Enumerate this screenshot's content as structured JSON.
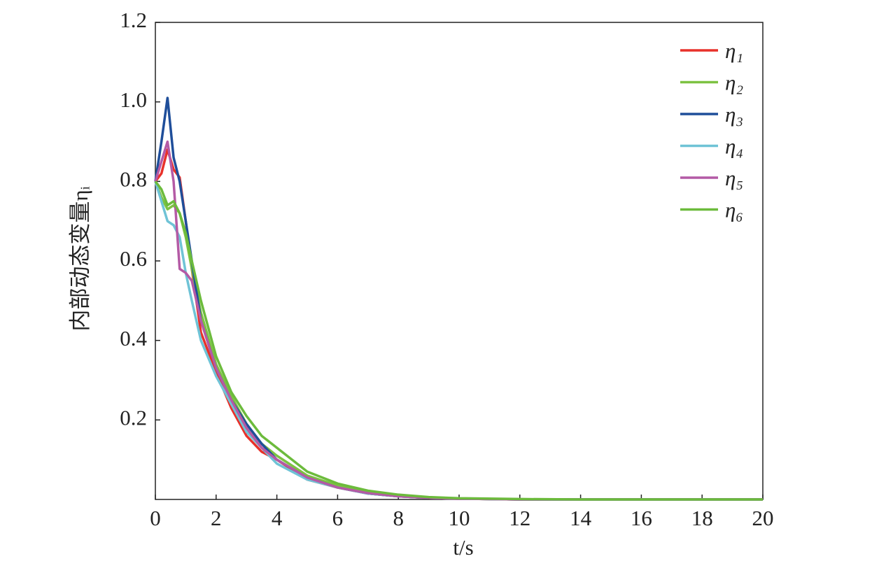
{
  "chart_data": {
    "type": "line",
    "x_label": "t/s",
    "y_label": "内部动态变量ηᵢ",
    "x": [
      0,
      0.2,
      0.4,
      0.6,
      0.8,
      1,
      1.2,
      1.5,
      2,
      2.5,
      3,
      3.5,
      4,
      5,
      6,
      7,
      8,
      9,
      10,
      12,
      14,
      16,
      18,
      20
    ],
    "series": [
      {
        "name": "η₁",
        "color": "#e8312a",
        "values": [
          0.8,
          0.82,
          0.88,
          0.83,
          0.81,
          0.7,
          0.58,
          0.42,
          0.32,
          0.23,
          0.16,
          0.12,
          0.1,
          0.05,
          0.03,
          0.015,
          0.008,
          0.004,
          0.002,
          0,
          0,
          0,
          0,
          0
        ]
      },
      {
        "name": "η₂",
        "color": "#7dc242",
        "values": [
          0.8,
          0.76,
          0.73,
          0.74,
          0.72,
          0.66,
          0.58,
          0.47,
          0.34,
          0.26,
          0.19,
          0.14,
          0.11,
          0.06,
          0.035,
          0.02,
          0.01,
          0.005,
          0.002,
          0,
          0,
          0,
          0,
          0
        ]
      },
      {
        "name": "η₃",
        "color": "#1f4e9a",
        "values": [
          0.8,
          0.9,
          1.01,
          0.86,
          0.8,
          0.7,
          0.6,
          0.45,
          0.33,
          0.25,
          0.19,
          0.14,
          0.1,
          0.055,
          0.03,
          0.015,
          0.008,
          0.004,
          0.002,
          0,
          0,
          0,
          0,
          0
        ]
      },
      {
        "name": "η₄",
        "color": "#6fc3d6",
        "values": [
          0.8,
          0.75,
          0.7,
          0.69,
          0.66,
          0.57,
          0.5,
          0.4,
          0.31,
          0.24,
          0.17,
          0.13,
          0.09,
          0.05,
          0.03,
          0.015,
          0.008,
          0.004,
          0.002,
          0,
          0,
          0,
          0,
          0
        ]
      },
      {
        "name": "η₅",
        "color": "#b45aa5",
        "values": [
          0.8,
          0.85,
          0.9,
          0.8,
          0.58,
          0.57,
          0.55,
          0.45,
          0.33,
          0.25,
          0.18,
          0.13,
          0.1,
          0.055,
          0.03,
          0.016,
          0.008,
          0.004,
          0.002,
          0,
          0,
          0,
          0,
          0
        ]
      },
      {
        "name": "η₆",
        "color": "#6cbb3c",
        "values": [
          0.8,
          0.78,
          0.74,
          0.75,
          0.72,
          0.67,
          0.6,
          0.5,
          0.36,
          0.27,
          0.21,
          0.16,
          0.13,
          0.07,
          0.04,
          0.022,
          0.012,
          0.006,
          0.003,
          0.001,
          0,
          0,
          0,
          0
        ]
      }
    ],
    "xlim": [
      0,
      20
    ],
    "xticks": [
      0,
      2,
      4,
      6,
      8,
      10,
      12,
      14,
      16,
      18,
      20
    ],
    "ylim": [
      0,
      1.2
    ],
    "yticks": [
      0.2,
      0.4,
      0.6,
      0.8,
      {
        "value": 1,
        "label": "1.0"
      },
      1.2
    ],
    "legend": "upper right"
  }
}
